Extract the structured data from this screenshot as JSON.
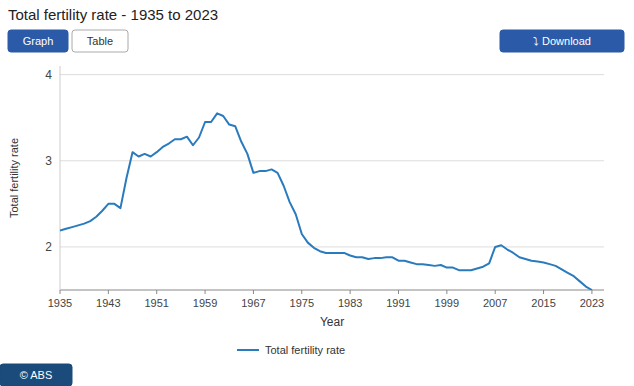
{
  "chart_data": {
    "type": "line",
    "title": "Total fertility rate - 1935 to 2023",
    "x_label": "Year",
    "y_label": "Total fertility rate",
    "annotations": [
      "Graph",
      "Table",
      "⤵ Download",
      "© ABS"
    ],
    "x": [
      1935,
      1936,
      1937,
      1938,
      1939,
      1940,
      1941,
      1942,
      1943,
      1944,
      1945,
      1946,
      1947,
      1948,
      1949,
      1950,
      1951,
      1952,
      1953,
      1954,
      1955,
      1956,
      1957,
      1958,
      1959,
      1960,
      1961,
      1962,
      1963,
      1964,
      1965,
      1966,
      1967,
      1968,
      1969,
      1970,
      1971,
      1972,
      1973,
      1974,
      1975,
      1976,
      1977,
      1978,
      1979,
      1980,
      1981,
      1982,
      1983,
      1984,
      1985,
      1986,
      1987,
      1988,
      1989,
      1990,
      1991,
      1992,
      1993,
      1994,
      1995,
      1996,
      1997,
      1998,
      1999,
      2000,
      2001,
      2002,
      2003,
      2004,
      2005,
      2006,
      2007,
      2008,
      2009,
      2010,
      2011,
      2012,
      2013,
      2014,
      2015,
      2016,
      2017,
      2018,
      2019,
      2020,
      2021,
      2022,
      2023
    ],
    "series": [
      {
        "name": "Total fertility rate",
        "color": "#2a7bbd",
        "values": [
          2.19,
          2.21,
          2.23,
          2.25,
          2.27,
          2.3,
          2.35,
          2.42,
          2.5,
          2.5,
          2.45,
          2.8,
          3.1,
          3.05,
          3.08,
          3.05,
          3.1,
          3.16,
          3.2,
          3.25,
          3.25,
          3.28,
          3.18,
          3.27,
          3.45,
          3.45,
          3.55,
          3.52,
          3.42,
          3.4,
          3.22,
          3.08,
          2.86,
          2.88,
          2.88,
          2.9,
          2.86,
          2.71,
          2.52,
          2.38,
          2.15,
          2.05,
          1.99,
          1.95,
          1.93,
          1.93,
          1.93,
          1.93,
          1.9,
          1.88,
          1.88,
          1.86,
          1.87,
          1.87,
          1.88,
          1.88,
          1.84,
          1.84,
          1.82,
          1.8,
          1.8,
          1.79,
          1.78,
          1.79,
          1.76,
          1.76,
          1.73,
          1.73,
          1.73,
          1.75,
          1.77,
          1.81,
          2.0,
          2.02,
          1.97,
          1.93,
          1.88,
          1.86,
          1.84,
          1.83,
          1.82,
          1.8,
          1.78,
          1.74,
          1.7,
          1.66,
          1.6,
          1.54,
          1.5
        ]
      }
    ],
    "xlim": [
      1935,
      2025
    ],
    "xticks": [
      1935,
      1943,
      1951,
      1959,
      1967,
      1975,
      1983,
      1991,
      1999,
      2007,
      2015,
      2023
    ],
    "ylim": [
      1.5,
      4.1
    ],
    "yticks": [
      2,
      3,
      4
    ],
    "grid": true,
    "legend": "bottom"
  }
}
